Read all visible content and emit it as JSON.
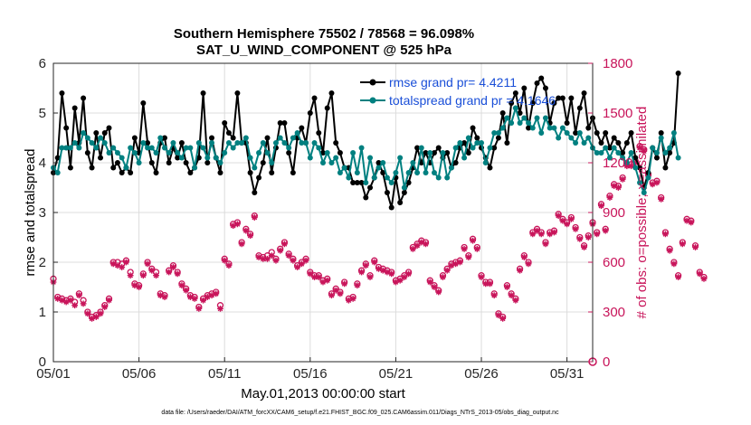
{
  "chart_data": {
    "type": "line",
    "title": "Southern Hemisphere 75502 / 78568 = 96.098%",
    "subtitle": "SAT_U_WIND_COMPONENT @ 525 hPa",
    "xlabel": "May.01,2013 00:00:00 start",
    "ylabel_left": "rmse and totalspread",
    "ylabel_right": "# of obs: o=possible; ×=assimilated",
    "footer": "data file: /Users/raeder/DAI/ATM_forcXX/CAM6_setup/f.e21.FHIST_BGC.f09_025.CAM6assim.011/Diags_NTrS_2013-05/obs_diag_output.nc",
    "x_ticks": [
      "05/01",
      "05/06",
      "05/11",
      "05/16",
      "05/21",
      "05/26",
      "05/31"
    ],
    "xlim": [
      0,
      31.5
    ],
    "ylim_left": [
      0,
      6
    ],
    "ylim_right": [
      0,
      1800
    ],
    "yticks_left": [
      "0",
      "1",
      "2",
      "3",
      "4",
      "5",
      "6"
    ],
    "yticks_right": [
      "0",
      "300",
      "600",
      "900",
      "1200",
      "1500",
      "1800"
    ],
    "step_days": 0.25,
    "series": [
      {
        "name": "rmse grand pr= 4.4211",
        "color": "#000000",
        "marker": "circle",
        "values": [
          3.8,
          4.1,
          5.4,
          4.7,
          3.9,
          5.1,
          4.4,
          5.3,
          4.2,
          3.9,
          4.6,
          4.1,
          4.6,
          4.7,
          3.9,
          4.0,
          3.8,
          3.9,
          3.8,
          4.5,
          4.2,
          5.2,
          4.4,
          4.0,
          3.8,
          4.4,
          4.5,
          4.0,
          4.3,
          4.1,
          4.4,
          4.0,
          3.8,
          3.9,
          4.1,
          5.4,
          4.0,
          4.5,
          4.1,
          3.8,
          4.8,
          4.6,
          4.5,
          5.4,
          4.4,
          4.4,
          3.8,
          3.4,
          3.7,
          4.0,
          4.5,
          3.8,
          4.3,
          4.8,
          4.8,
          4.2,
          3.8,
          4.5,
          4.7,
          4.4,
          5.0,
          5.3,
          4.6,
          4.2,
          5.1,
          5.4,
          4.4,
          4.2,
          3.9,
          3.9,
          3.6,
          3.6,
          3.6,
          3.3,
          3.5,
          3.7,
          4.0,
          3.8,
          3.4,
          3.1,
          3.7,
          3.2,
          3.4,
          3.6,
          3.9,
          4.3,
          4.0,
          4.2,
          4.0,
          4.2,
          4.3,
          4.1,
          4.2,
          3.9,
          4.0,
          4.3,
          4.4,
          4.2,
          4.7,
          4.5,
          4.3,
          4.1,
          3.9,
          4.3,
          4.5,
          5.0,
          4.4,
          5.2,
          5.4,
          5.0,
          5.5,
          4.7,
          5.2,
          5.6,
          5.7,
          5.5,
          4.8,
          5.2,
          5.3,
          5.3,
          4.8,
          5.3,
          4.6,
          5.1,
          5.4,
          4.7,
          4.9,
          4.6,
          4.4,
          4.6,
          4.3,
          4.5,
          4.4,
          4.2,
          4.4,
          4.6,
          4.1,
          3.9,
          3.5,
          3.8,
          4.3,
          4.1,
          4.6,
          3.9,
          4.2,
          4.4,
          5.8
        ]
      },
      {
        "name": "totalspread grand pr = 4.1646",
        "color": "#008080",
        "marker": "circle",
        "values": [
          3.9,
          3.8,
          4.3,
          4.3,
          4.3,
          4.4,
          4.3,
          4.6,
          4.5,
          4.4,
          4.3,
          4.5,
          4.4,
          4.2,
          4.3,
          4.2,
          4.1,
          3.9,
          4.3,
          4.2,
          4.0,
          4.4,
          4.3,
          4.3,
          4.2,
          4.5,
          4.3,
          4.2,
          4.4,
          4.2,
          4.1,
          4.3,
          4.3,
          3.9,
          4.4,
          4.3,
          4.1,
          4.4,
          4.1,
          4.0,
          4.2,
          4.4,
          4.3,
          4.4,
          4.4,
          4.5,
          4.1,
          3.9,
          4.2,
          4.4,
          4.2,
          4.0,
          4.4,
          4.5,
          4.4,
          4.3,
          4.5,
          4.6,
          4.4,
          4.4,
          4.1,
          4.4,
          4.3,
          4.0,
          4.2,
          4.0,
          4.1,
          3.8,
          3.9,
          3.7,
          4.2,
          3.8,
          4.3,
          3.6,
          4.1,
          3.7,
          3.9,
          4.0,
          3.7,
          3.6,
          3.8,
          4.1,
          3.5,
          3.8,
          4.0,
          3.8,
          4.3,
          3.8,
          4.2,
          3.8,
          3.7,
          4.2,
          3.7,
          3.9,
          4.3,
          4.4,
          4.1,
          4.5,
          4.3,
          4.4,
          4.4,
          4.0,
          4.3,
          4.6,
          4.6,
          4.7,
          4.9,
          4.8,
          5.1,
          4.8,
          4.9,
          4.8,
          4.7,
          4.9,
          4.6,
          4.9,
          4.7,
          4.7,
          4.5,
          4.7,
          4.6,
          4.5,
          4.4,
          4.6,
          4.4,
          4.5,
          4.3,
          4.2,
          4.2,
          4.3,
          4.1,
          4.3,
          4.2,
          4.1,
          4.0,
          4.2,
          3.9,
          3.6,
          3.4,
          3.7,
          4.3,
          4.2,
          4.5,
          4.2,
          4.3,
          4.6,
          4.1
        ]
      }
    ],
    "obs_series": [
      {
        "name": "possible",
        "marker": "o",
        "color": "#c8145a",
        "values": [
          500,
          390,
          380,
          370,
          380,
          360,
          410,
          370,
          300,
          270,
          280,
          300,
          340,
          380,
          600,
          600,
          590,
          610,
          540,
          470,
          460,
          530,
          600,
          560,
          540,
          410,
          400,
          550,
          580,
          540,
          470,
          440,
          400,
          390,
          330,
          380,
          400,
          410,
          420,
          340,
          620,
          590,
          830,
          840,
          720,
          800,
          770,
          880,
          640,
          630,
          640,
          660,
          620,
          680,
          720,
          650,
          620,
          580,
          600,
          620,
          540,
          520,
          520,
          490,
          500,
          410,
          440,
          420,
          480,
          380,
          390,
          470,
          550,
          590,
          520,
          610,
          570,
          560,
          550,
          540,
          490,
          500,
          520,
          540,
          690,
          710,
          730,
          720,
          490,
          460,
          430,
          520,
          560,
          590,
          600,
          610,
          690,
          640,
          740,
          690,
          520,
          480,
          480,
          410,
          290,
          270,
          460,
          410,
          380,
          560,
          640,
          600,
          780,
          800,
          780,
          720,
          780,
          790,
          890,
          860,
          840,
          870,
          810,
          750,
          700,
          760,
          840,
          780,
          950,
          800,
          1000,
          1070,
          1060,
          1110,
          1190,
          1190,
          1210,
          1300,
          1280,
          1130,
          1080,
          1090,
          990,
          780,
          680,
          600,
          520,
          720,
          860,
          850,
          700,
          540,
          510
        ]
      },
      {
        "name": "assimilated",
        "marker": "*",
        "color": "#c8145a",
        "values": [
          480,
          380,
          370,
          360,
          370,
          340,
          400,
          350,
          290,
          260,
          270,
          290,
          330,
          370,
          590,
          580,
          570,
          600,
          520,
          460,
          450,
          520,
          590,
          550,
          520,
          400,
          390,
          540,
          570,
          530,
          460,
          430,
          390,
          380,
          320,
          370,
          390,
          400,
          410,
          320,
          610,
          580,
          820,
          830,
          710,
          790,
          760,
          870,
          630,
          620,
          620,
          640,
          610,
          670,
          710,
          640,
          610,
          570,
          590,
          610,
          530,
          510,
          510,
          480,
          490,
          400,
          430,
          410,
          470,
          370,
          380,
          460,
          540,
          580,
          510,
          600,
          560,
          550,
          540,
          530,
          480,
          490,
          510,
          530,
          680,
          700,
          720,
          710,
          480,
          450,
          420,
          510,
          550,
          580,
          590,
          600,
          680,
          630,
          730,
          680,
          510,
          470,
          470,
          400,
          280,
          260,
          450,
          400,
          370,
          550,
          630,
          590,
          770,
          790,
          770,
          710,
          770,
          780,
          880,
          850,
          830,
          860,
          800,
          740,
          690,
          750,
          830,
          770,
          940,
          790,
          990,
          1060,
          1050,
          1100,
          1180,
          1180,
          1200,
          1290,
          1270,
          1120,
          1070,
          1080,
          980,
          770,
          670,
          590,
          510,
          710,
          850,
          840,
          690,
          530,
          500
        ]
      }
    ]
  }
}
